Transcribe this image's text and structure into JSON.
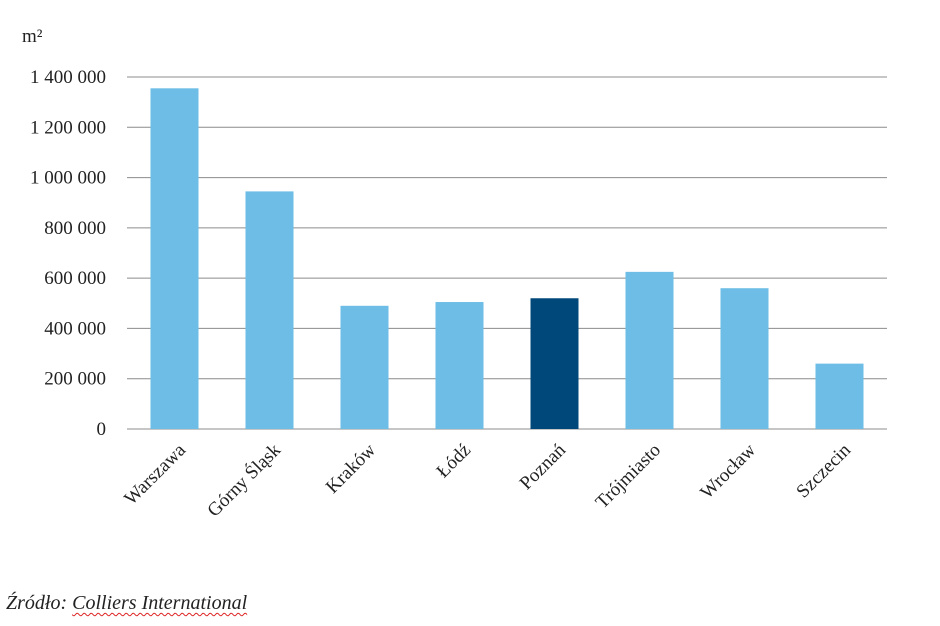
{
  "chart_data": {
    "type": "bar",
    "unit_label": "m²",
    "categories": [
      "Warszawa",
      "Górny Śląsk",
      "Kraków",
      "Łódź",
      "Poznań",
      "Trójmiasto",
      "Wrocław",
      "Szczecin"
    ],
    "values": [
      1355000,
      945000,
      490000,
      505000,
      520000,
      625000,
      560000,
      260000
    ],
    "highlight_category": "Poznań",
    "ylim": [
      0,
      1400000
    ],
    "yticks": [
      0,
      200000,
      400000,
      600000,
      800000,
      1000000,
      1200000,
      1400000
    ],
    "ytick_labels": [
      "0",
      "200 000",
      "400 000",
      "600 000",
      "800 000",
      "1 000 000",
      "1 200 000",
      "1 400 000"
    ],
    "grid": true,
    "colors": {
      "bar": "#6dbde6",
      "highlight": "#00487a",
      "grid": "#8c8c8c"
    }
  },
  "source": {
    "prefix": "Źródło: ",
    "name": "Colliers International"
  }
}
